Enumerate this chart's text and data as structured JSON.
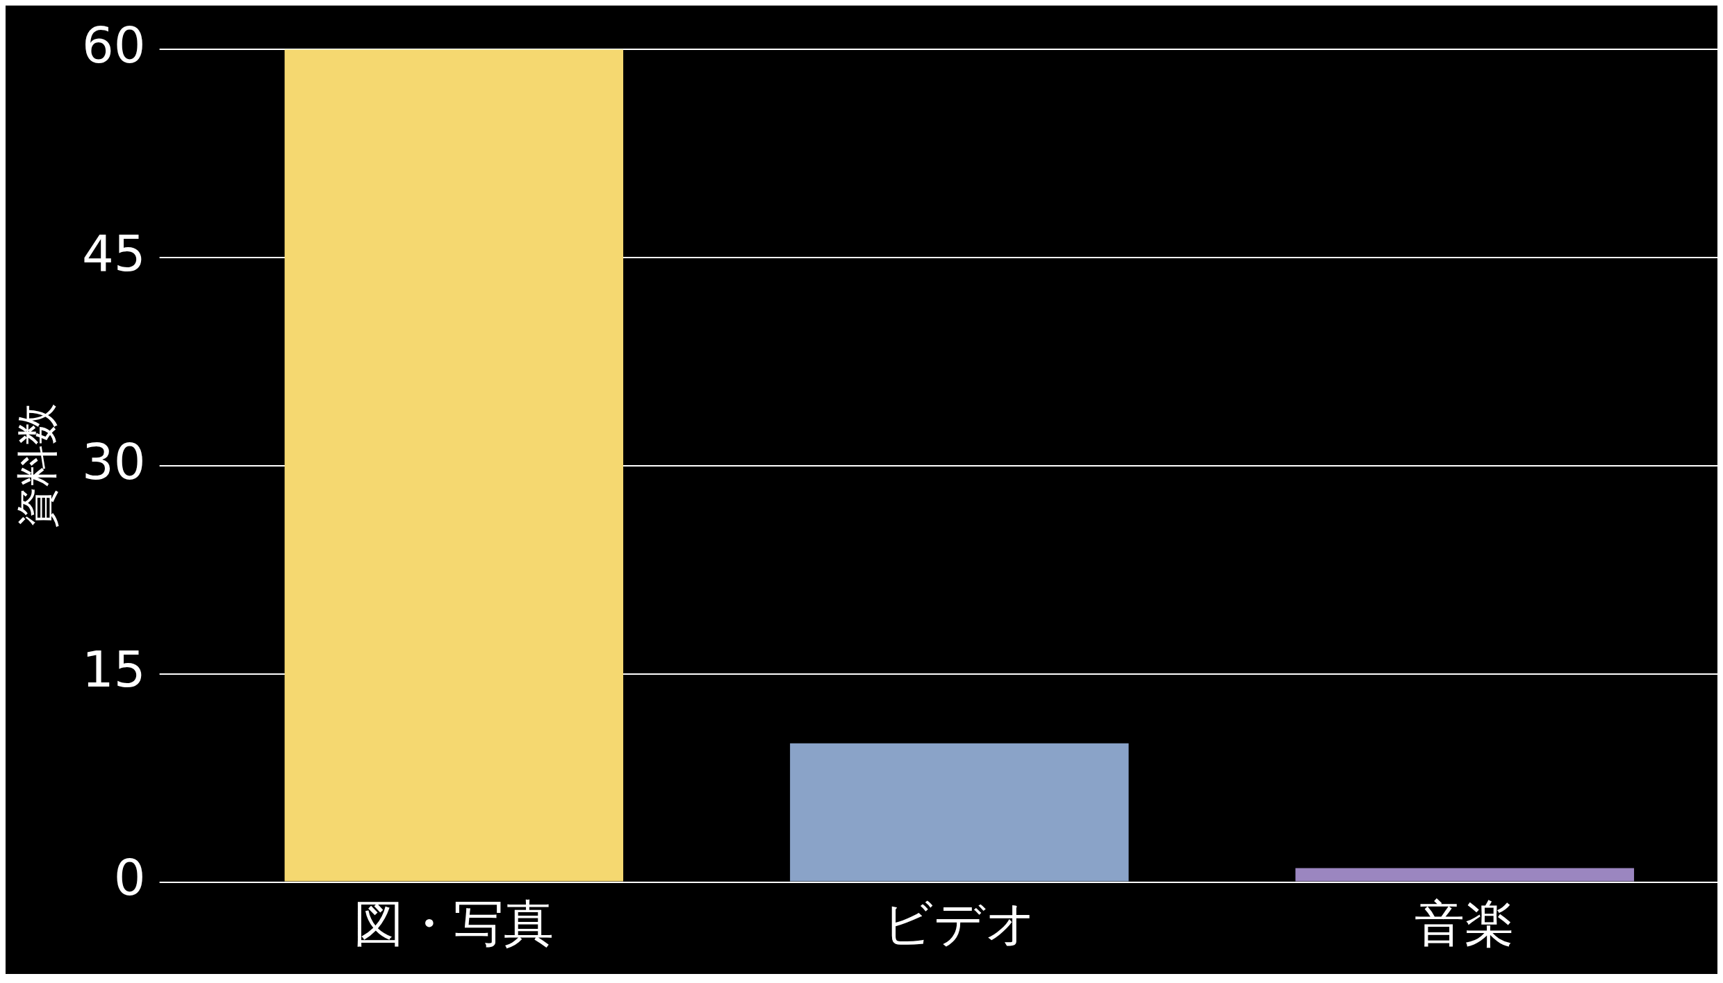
{
  "chart_data": {
    "type": "bar",
    "ylabel": "資料数",
    "categories": [
      "図・写真",
      "ビデオ",
      "音楽"
    ],
    "values": [
      60,
      10,
      1
    ],
    "colors": [
      "#f5d870",
      "#8aa3c8",
      "#9b86c0"
    ],
    "ylim": [
      0,
      60
    ],
    "yticks": [
      0,
      15,
      30,
      45,
      60
    ],
    "grid": "y",
    "legend": false
  }
}
